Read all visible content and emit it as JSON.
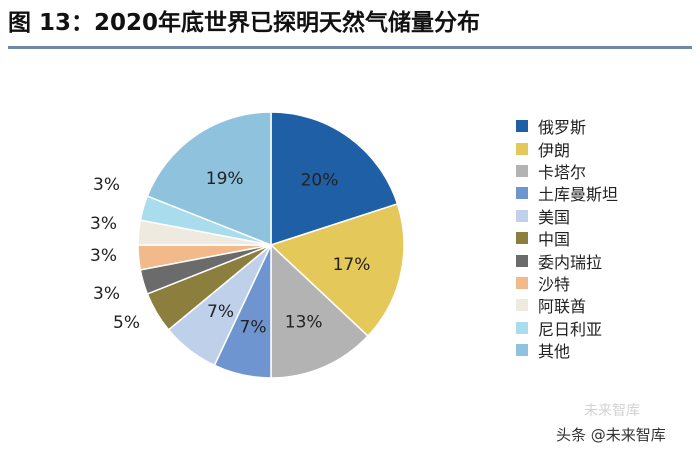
{
  "header": {
    "title": "图 13：2020年底世界已探明天然气储量分布"
  },
  "chart_data": {
    "type": "pie",
    "title": "图 13：2020年底世界已探明天然气储量分布",
    "start": "12 o'clock",
    "direction": "clockwise",
    "slices": [
      {
        "label": "俄罗斯",
        "value": 20,
        "display": "20%",
        "color": "#1f5fa6"
      },
      {
        "label": "伊朗",
        "value": 17,
        "display": "17%",
        "color": "#e5c85a"
      },
      {
        "label": "卡塔尔",
        "value": 13,
        "display": "13%",
        "color": "#b3b3b3"
      },
      {
        "label": "土库曼斯坦",
        "value": 7,
        "display": "7%",
        "color": "#6f95d0"
      },
      {
        "label": "美国",
        "value": 7,
        "display": "7%",
        "color": "#bfd0ea"
      },
      {
        "label": "中国",
        "value": 5,
        "display": "5%",
        "color": "#8c7e3d"
      },
      {
        "label": "委内瑞拉",
        "value": 3,
        "display": "3%",
        "color": "#6b6b6b"
      },
      {
        "label": "沙特",
        "value": 3,
        "display": "3%",
        "color": "#f2b98a"
      },
      {
        "label": "阿联酋",
        "value": 3,
        "display": "3%",
        "color": "#efeae0"
      },
      {
        "label": "尼日利亚",
        "value": 3,
        "display": "3%",
        "color": "#a9dced"
      },
      {
        "label": "其他",
        "value": 19,
        "display": "19%",
        "color": "#8fc2dc"
      }
    ],
    "legend_position": "right"
  },
  "footer": {
    "source": "头条 @未来智库",
    "watermark": "未来智库"
  }
}
